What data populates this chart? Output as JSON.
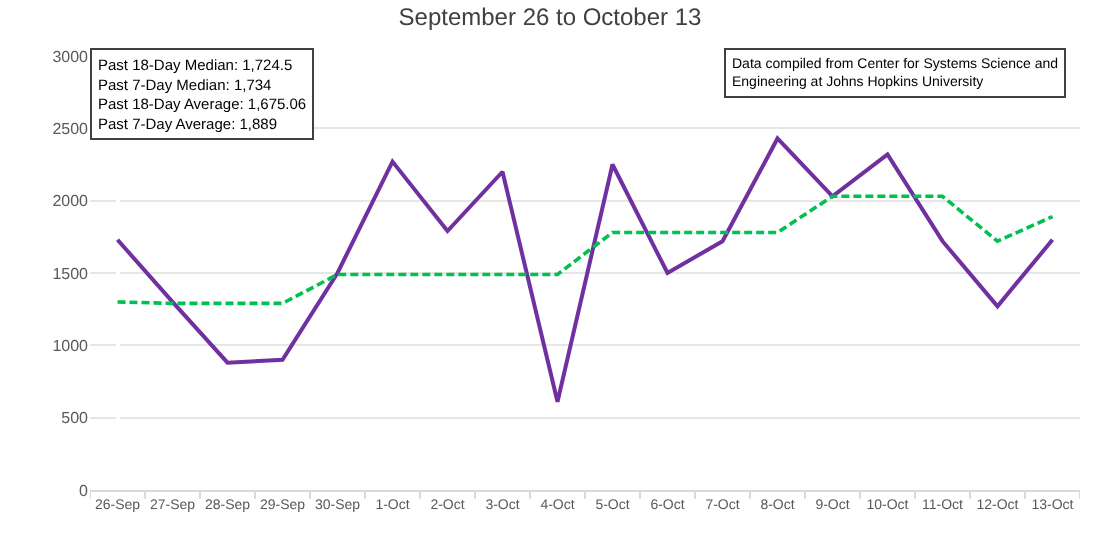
{
  "chart_data": {
    "type": "line",
    "title": "September 26 to October 13",
    "categories": [
      "26-Sep",
      "27-Sep",
      "28-Sep",
      "29-Sep",
      "30-Sep",
      "1-Oct",
      "2-Oct",
      "3-Oct",
      "4-Oct",
      "5-Oct",
      "6-Oct",
      "7-Oct",
      "8-Oct",
      "9-Oct",
      "10-Oct",
      "11-Oct",
      "12-Oct",
      "13-Oct"
    ],
    "series": [
      {
        "color": "#7030a0",
        "line_style": "solid",
        "values": [
          1730,
          1300,
          880,
          900,
          1500,
          2270,
          1790,
          2200,
          610,
          2250,
          1500,
          1720,
          2430,
          2030,
          2320,
          1720,
          1270,
          1730
        ]
      },
      {
        "color": "#00c050",
        "line_style": "dashed",
        "values": [
          1300,
          1290,
          1290,
          1290,
          1490,
          1490,
          1490,
          1490,
          1490,
          1780,
          1780,
          1780,
          1780,
          2030,
          2030,
          2030,
          1720,
          1890
        ]
      }
    ],
    "ylim": [
      0,
      3000
    ],
    "yticks": [
      0,
      500,
      1000,
      1500,
      2000,
      2500,
      3000
    ],
    "grid": "y",
    "marker": "none",
    "annotations": [
      "Past 18-Day Median: 1,724.5\nPast 7-Day Median: 1,734\nPast 18-Day Average: 1,675.06\nPast 7-Day Average: 1,889",
      "Data compiled from Center for Systems Science and\nEngineering at Johns Hopkins University"
    ]
  }
}
